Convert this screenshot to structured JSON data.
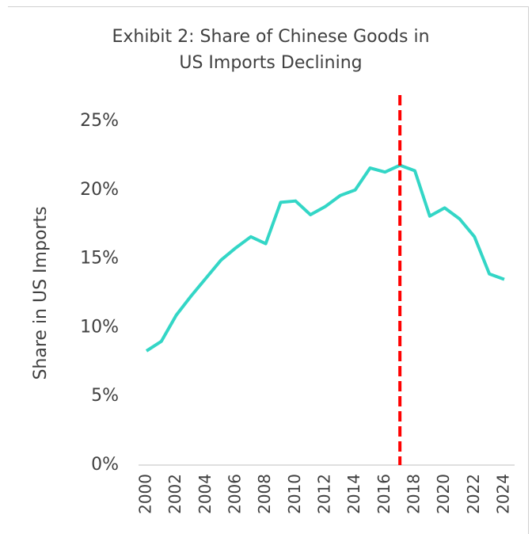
{
  "chart_data": {
    "type": "line",
    "title": "Exhibit 2: Share of Chinese Goods in US Imports Declining",
    "ylabel": "Share in US Imports",
    "x": [
      2000,
      2001,
      2002,
      2003,
      2004,
      2005,
      2006,
      2007,
      2008,
      2009,
      2010,
      2011,
      2012,
      2013,
      2014,
      2015,
      2016,
      2017,
      2018,
      2019,
      2020,
      2021,
      2022,
      2023,
      2024
    ],
    "series": [
      {
        "name": "Share in US Imports",
        "color": "#33d6c6",
        "values": [
          8.3,
          9.0,
          10.9,
          12.3,
          13.6,
          14.9,
          15.8,
          16.6,
          16.1,
          19.1,
          19.2,
          18.2,
          18.8,
          19.6,
          20.0,
          21.6,
          21.3,
          21.8,
          21.4,
          18.1,
          18.7,
          17.9,
          16.6,
          13.9,
          13.5
        ]
      }
    ],
    "xlim": [
      2000,
      2024
    ],
    "xticks": [
      2000,
      2002,
      2004,
      2006,
      2008,
      2010,
      2012,
      2014,
      2016,
      2018,
      2020,
      2022,
      2024
    ],
    "ylim": [
      0,
      25
    ],
    "yticks": [
      {
        "value": 0,
        "label": "0%"
      },
      {
        "value": 5,
        "label": "5%"
      },
      {
        "value": 10,
        "label": "10%"
      },
      {
        "value": 15,
        "label": "15%"
      },
      {
        "value": 20,
        "label": "20%"
      },
      {
        "value": 25,
        "label": "25%"
      }
    ],
    "vline": {
      "x": 2017,
      "color": "#ff0000"
    },
    "grid": false
  }
}
